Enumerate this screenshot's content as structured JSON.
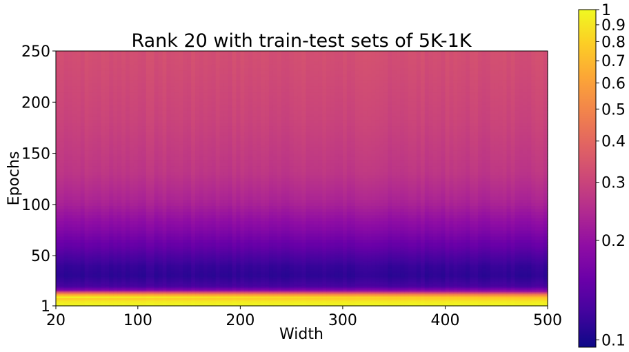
{
  "chart_data": {
    "type": "heatmap",
    "title": "Rank 20 with train-test sets of 5K-1K",
    "xlabel": "Width",
    "ylabel": "Epochs",
    "xlim": [
      20,
      500
    ],
    "ylim": [
      1,
      250
    ],
    "x_ticks": [
      20,
      100,
      200,
      300,
      400,
      500
    ],
    "y_ticks": [
      1,
      50,
      100,
      150,
      200,
      250
    ],
    "colormap": "plasma",
    "colorbar": {
      "scale": "log",
      "range": [
        0.095,
        1.0
      ],
      "ticks": [
        0.1,
        0.2,
        0.3,
        0.4,
        0.5,
        0.6,
        0.7,
        0.8,
        0.9,
        1.0
      ],
      "tick_labels": [
        "0.1",
        "0.2",
        "0.3",
        "0.4",
        "0.5",
        "0.6",
        "0.7",
        "0.8",
        "0.9",
        "1"
      ]
    },
    "grid": false,
    "value_profile_by_epoch": [
      {
        "epoch": 1,
        "value": 1.0
      },
      {
        "epoch": 5,
        "value": 0.92
      },
      {
        "epoch": 9,
        "value": 0.75
      },
      {
        "epoch": 12,
        "value": 0.45
      },
      {
        "epoch": 15,
        "value": 0.2
      },
      {
        "epoch": 20,
        "value": 0.125
      },
      {
        "epoch": 30,
        "value": 0.11
      },
      {
        "epoch": 40,
        "value": 0.115
      },
      {
        "epoch": 50,
        "value": 0.13
      },
      {
        "epoch": 60,
        "value": 0.15
      },
      {
        "epoch": 75,
        "value": 0.18
      },
      {
        "epoch": 100,
        "value": 0.23
      },
      {
        "epoch": 130,
        "value": 0.27
      },
      {
        "epoch": 180,
        "value": 0.3
      },
      {
        "epoch": 250,
        "value": 0.33
      }
    ]
  }
}
